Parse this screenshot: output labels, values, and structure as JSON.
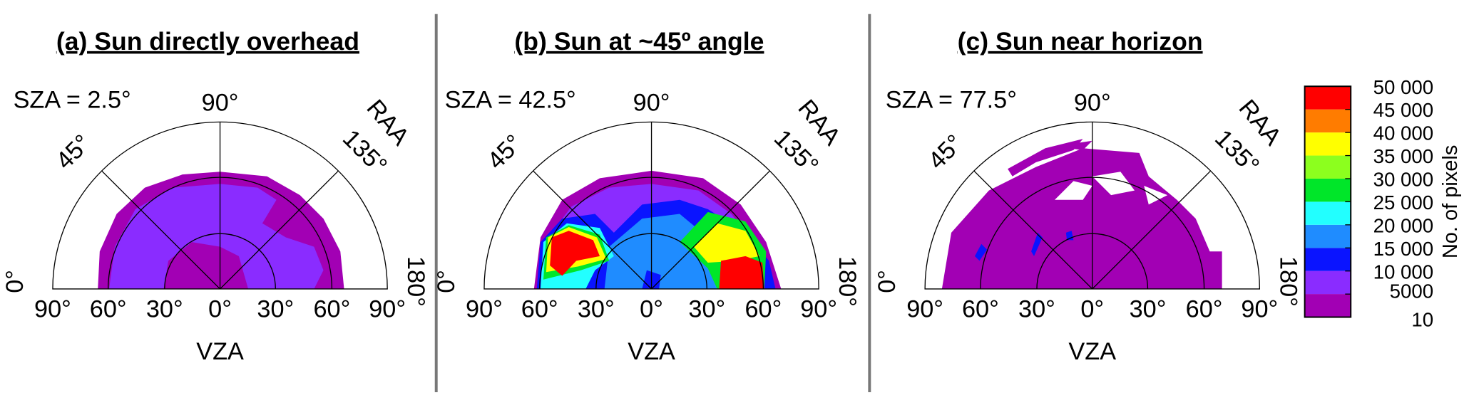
{
  "panels": [
    {
      "title": "(a) Sun directly overhead",
      "sza_label": "SZA = 2.5°",
      "vza_label": "VZA",
      "raa_label": "RAA",
      "vza_ticks": [
        "90°",
        "60°",
        "30°",
        "0°",
        "30°",
        "60°",
        "90°"
      ],
      "raa_ticks": [
        "0°",
        "45°",
        "90°",
        "135°",
        "180°"
      ]
    },
    {
      "title": "(b) Sun at ~45º angle",
      "sza_label": "SZA = 42.5°",
      "vza_label": "VZA",
      "raa_label": "RAA",
      "vza_ticks": [
        "90°",
        "60°",
        "30°",
        "0°",
        "30°",
        "60°",
        "90°"
      ],
      "raa_ticks": [
        "0°",
        "45°",
        "90°",
        "135°",
        "180°"
      ]
    },
    {
      "title": "(c) Sun near horizon",
      "sza_label": "SZA = 77.5°",
      "vza_label": "VZA",
      "raa_label": "RAA",
      "vza_ticks": [
        "90°",
        "60°",
        "30°",
        "0°",
        "30°",
        "60°",
        "90°"
      ],
      "raa_ticks": [
        "0°",
        "45°",
        "90°",
        "135°",
        "180°"
      ]
    }
  ],
  "colorbar": {
    "title": "No. of pixels",
    "ticks": [
      {
        "value": 10,
        "label": "10"
      },
      {
        "value": 5000,
        "label": "5000"
      },
      {
        "value": 10000,
        "label": "10 000"
      },
      {
        "value": 15000,
        "label": "15 000"
      },
      {
        "value": 20000,
        "label": "20 000"
      },
      {
        "value": 25000,
        "label": "25 000"
      },
      {
        "value": 30000,
        "label": "30 000"
      },
      {
        "value": 35000,
        "label": "35 000"
      },
      {
        "value": 40000,
        "label": "40 000"
      },
      {
        "value": 45000,
        "label": "45 000"
      },
      {
        "value": 50000,
        "label": "50 000"
      }
    ],
    "colors": [
      "#a200b4",
      "#8a2cff",
      "#0a14ff",
      "#1f8cff",
      "#22ffff",
      "#00e629",
      "#8cff1e",
      "#ffff00",
      "#ff7c00",
      "#ff0000"
    ]
  }
}
